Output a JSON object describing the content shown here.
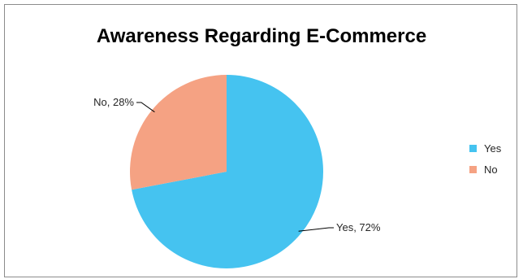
{
  "chart_data": {
    "type": "pie",
    "title": "Awareness Regarding E-Commerce",
    "categories": [
      "Yes",
      "No"
    ],
    "values": [
      72,
      28
    ],
    "unit": "%",
    "data_labels": [
      "Yes, 72%",
      "No, 28%"
    ],
    "colors": [
      "#45c3f0",
      "#f5a283"
    ],
    "legend": {
      "placement": "right",
      "entries": [
        "Yes",
        "No"
      ]
    }
  }
}
